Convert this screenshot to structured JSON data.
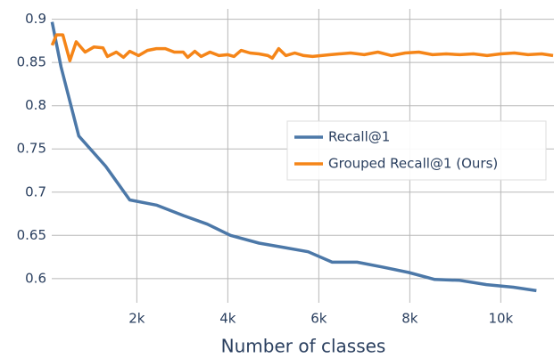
{
  "chart_data": {
    "type": "line",
    "x_label": "Number of classes",
    "xlim": [
      130,
      11170
    ],
    "ylim": [
      0.572,
      0.912
    ],
    "xticks": [
      {
        "value": 2000,
        "label": "2k"
      },
      {
        "value": 4000,
        "label": "4k"
      },
      {
        "value": 6000,
        "label": "6k"
      },
      {
        "value": 8000,
        "label": "8k"
      },
      {
        "value": 10000,
        "label": "10k"
      }
    ],
    "yticks": [
      0.6,
      0.65,
      0.7,
      0.75,
      0.8,
      0.85,
      0.9
    ],
    "grid": true,
    "legend": "right",
    "series": [
      {
        "name": "Recall@1",
        "color": "#4c78a8",
        "x": [
          137,
          333,
          725,
          1314,
          1843,
          2431,
          3020,
          3549,
          4059,
          4686,
          5235,
          5765,
          6294,
          6843,
          7431,
          7980,
          8549,
          9098,
          9686,
          10275,
          10784
        ],
        "values": [
          0.897,
          0.845,
          0.765,
          0.73,
          0.691,
          0.685,
          0.673,
          0.663,
          0.65,
          0.641,
          0.636,
          0.631,
          0.619,
          0.619,
          0.613,
          0.607,
          0.599,
          0.598,
          0.593,
          0.59,
          0.586
        ]
      },
      {
        "name": "Grouped Recall@1 (Ours)",
        "color": "#f58518",
        "x": [
          137,
          235,
          373,
          529,
          667,
          863,
          1059,
          1255,
          1353,
          1549,
          1706,
          1843,
          2039,
          2235,
          2431,
          2627,
          2824,
          3020,
          3118,
          3275,
          3412,
          3608,
          3804,
          4000,
          4137,
          4294,
          4490,
          4686,
          4882,
          4980,
          5118,
          5275,
          5471,
          5667,
          5863,
          6059,
          6255,
          6451,
          6700,
          7000,
          7300,
          7600,
          7900,
          8200,
          8500,
          8800,
          9100,
          9400,
          9700,
          10000,
          10300,
          10600,
          10900,
          11150
        ],
        "values": [
          0.87,
          0.882,
          0.882,
          0.852,
          0.874,
          0.862,
          0.868,
          0.867,
          0.857,
          0.862,
          0.856,
          0.863,
          0.858,
          0.864,
          0.866,
          0.866,
          0.862,
          0.862,
          0.856,
          0.863,
          0.857,
          0.862,
          0.858,
          0.859,
          0.857,
          0.864,
          0.861,
          0.86,
          0.858,
          0.855,
          0.866,
          0.858,
          0.861,
          0.858,
          0.857,
          0.858,
          0.859,
          0.86,
          0.861,
          0.859,
          0.862,
          0.858,
          0.861,
          0.862,
          0.859,
          0.86,
          0.859,
          0.86,
          0.858,
          0.86,
          0.861,
          0.859,
          0.86,
          0.858
        ]
      }
    ]
  }
}
